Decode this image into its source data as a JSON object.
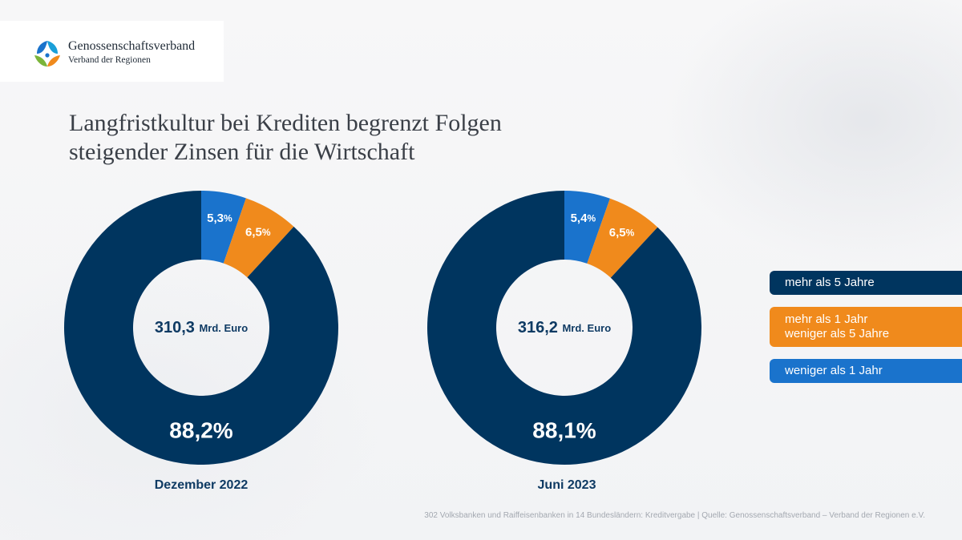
{
  "logo": {
    "name": "Genossenschaftsverband",
    "subtitle": "Verband der Regionen"
  },
  "slide": {
    "title_line1": "Langfristkultur bei Krediten begrenzt Folgen",
    "title_line2": "steigender Zinsen für die Wirtschaft",
    "footnote": "302 Volksbanken und Raiffeisenbanken in 14 Bundesländern: Kreditvergabe | Quelle: Genossenschaftsverband – Verband der Regionen e.V."
  },
  "colors": {
    "long": "#00355f",
    "mid": "#f08a1c",
    "short": "#1a73cc"
  },
  "legend": [
    {
      "key": "long",
      "lines": [
        "mehr als 5 Jahre"
      ]
    },
    {
      "key": "mid",
      "lines": [
        "mehr als 1 Jahr",
        "weniger als 5 Jahre"
      ]
    },
    {
      "key": "short",
      "lines": [
        "weniger als 1 Jahr"
      ]
    }
  ],
  "chart_data": [
    {
      "type": "pie",
      "style": "donut",
      "label": "Dezember 2022",
      "center_value": "310,3",
      "center_unit": "Mrd. Euro",
      "slices": [
        {
          "key": "short",
          "value": 5.3,
          "number": "5,3",
          "unit": "%"
        },
        {
          "key": "mid",
          "value": 6.5,
          "number": "6,5",
          "unit": "%"
        },
        {
          "key": "long",
          "value": 88.2,
          "number": "88,2",
          "unit": "%"
        }
      ]
    },
    {
      "type": "pie",
      "style": "donut",
      "label": "Juni 2023",
      "center_value": "316,2",
      "center_unit": "Mrd. Euro",
      "slices": [
        {
          "key": "short",
          "value": 5.4,
          "number": "5,4",
          "unit": "%"
        },
        {
          "key": "mid",
          "value": 6.5,
          "number": "6,5",
          "unit": "%"
        },
        {
          "key": "long",
          "value": 88.1,
          "number": "88,1",
          "unit": "%"
        }
      ]
    }
  ]
}
